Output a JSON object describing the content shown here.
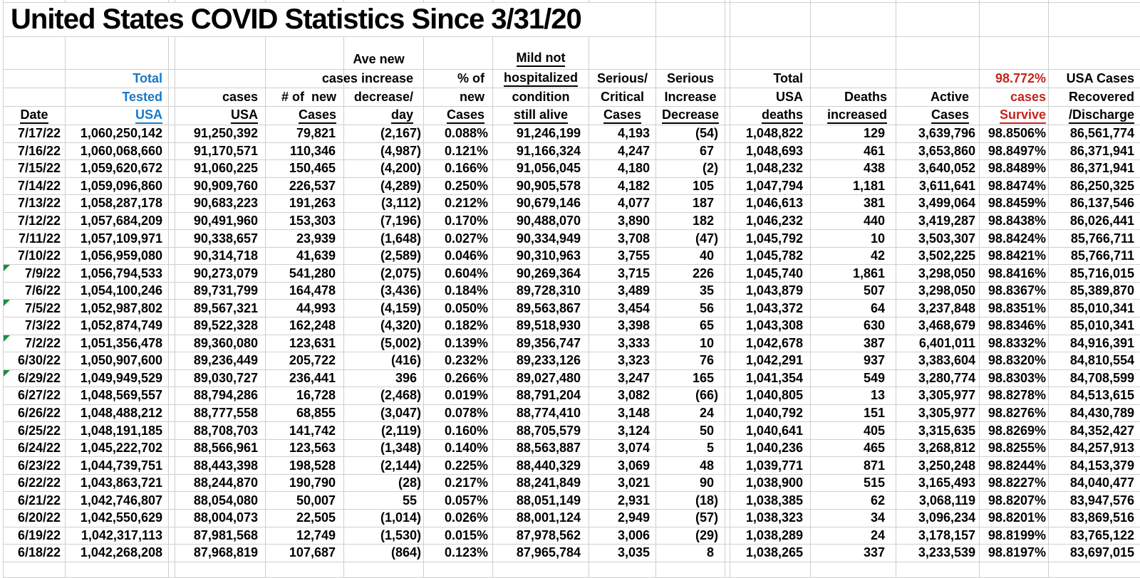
{
  "title": "United States COVID Statistics Since 3/31/20",
  "colors": {
    "blue": "#1878c8",
    "red": "#c7231c",
    "flag_green": "#1e8e3e",
    "gridline": "#cfcfcf"
  },
  "header": {
    "columns": [
      {
        "id": "c1",
        "key": "date",
        "lines": [
          null,
          null,
          null,
          {
            "t": "Date",
            "u": true
          }
        ]
      },
      {
        "id": "c2",
        "key": "total_tested",
        "color": "blue",
        "lines": [
          null,
          {
            "t": "Total"
          },
          {
            "t": "Tested"
          },
          {
            "t": "USA",
            "u": true
          }
        ]
      },
      {
        "id": "c3",
        "key": "spacer1",
        "spacer": true,
        "lines": []
      },
      {
        "id": "c4",
        "key": "cases",
        "lines": [
          null,
          null,
          {
            "t": "cases"
          },
          {
            "t": "USA",
            "u": true
          }
        ]
      },
      {
        "id": "c5",
        "key": "new_cases",
        "lines": [
          null,
          null,
          {
            "t": "# of  new"
          },
          {
            "t": "Cases",
            "u": true
          }
        ]
      },
      {
        "id": "c6",
        "key": "increase_decrease",
        "lines": [
          {
            "t": "Ave new"
          },
          {
            "t": "cases increase"
          },
          {
            "t": "decrease/"
          },
          {
            "t": "day",
            "u": true
          }
        ]
      },
      {
        "id": "c7",
        "key": "pct_new",
        "lines": [
          null,
          {
            "t": "% of"
          },
          {
            "t": "new"
          },
          {
            "t": "Cases",
            "u": true
          }
        ]
      },
      {
        "id": "c8",
        "key": "mild",
        "lines": [
          {
            "t": "Mild not",
            "u": true
          },
          {
            "t": "hospitalized",
            "u": true
          },
          {
            "t": "condition"
          },
          {
            "t": "still alive",
            "u": true
          }
        ]
      },
      {
        "id": "c9",
        "key": "serious",
        "lines": [
          null,
          {
            "t": "Serious/"
          },
          {
            "t": "Critical"
          },
          {
            "t": "Cases",
            "u": true
          }
        ]
      },
      {
        "id": "c10",
        "key": "serious_change",
        "lines": [
          null,
          {
            "t": "Serious"
          },
          {
            "t": "Increase"
          },
          {
            "t": "Decrease",
            "u": true
          }
        ]
      },
      {
        "id": "c11",
        "key": "spacer2",
        "spacer": true,
        "lines": []
      },
      {
        "id": "c12",
        "key": "deaths",
        "lines": [
          null,
          {
            "t": "Total"
          },
          {
            "t": "USA"
          },
          {
            "t": "deaths",
            "u": true
          }
        ]
      },
      {
        "id": "c13",
        "key": "deaths_increase",
        "lines": [
          null,
          null,
          {
            "t": "Deaths"
          },
          {
            "t": "increased",
            "u": true
          }
        ]
      },
      {
        "id": "c14",
        "key": "active",
        "lines": [
          null,
          null,
          {
            "t": "Active"
          },
          {
            "t": "Cases",
            "u": true
          }
        ]
      },
      {
        "id": "c15",
        "key": "survive",
        "color": "red",
        "lines": [
          null,
          {
            "t": "98.772%"
          },
          {
            "t": "cases"
          },
          {
            "t": "Survive",
            "u": true
          }
        ]
      },
      {
        "id": "c16",
        "key": "recovered",
        "lines": [
          null,
          {
            "t": "USA Cases"
          },
          {
            "t": "Recovered"
          },
          {
            "t": "/Discharge",
            "u": true
          }
        ]
      }
    ]
  },
  "flagged_dates": [
    "7/9/22",
    "7/5/22",
    "7/2/22",
    "6/29/22"
  ],
  "rows": [
    [
      "7/17/22",
      "1,060,250,142",
      "91,250,392",
      "79,821",
      "(2,167)",
      "0.088%",
      "91,246,199",
      "4,193",
      "(54)",
      "1,048,822",
      "129",
      "3,639,796",
      "98.8506%",
      "86,561,774"
    ],
    [
      "7/16/22",
      "1,060,068,660",
      "91,170,571",
      "110,346",
      "(4,987)",
      "0.121%",
      "91,166,324",
      "4,247",
      "67",
      "1,048,693",
      "461",
      "3,653,860",
      "98.8497%",
      "86,371,941"
    ],
    [
      "7/15/22",
      "1,059,620,672",
      "91,060,225",
      "150,465",
      "(4,200)",
      "0.166%",
      "91,056,045",
      "4,180",
      "(2)",
      "1,048,232",
      "438",
      "3,640,052",
      "98.8489%",
      "86,371,941"
    ],
    [
      "7/14/22",
      "1,059,096,860",
      "90,909,760",
      "226,537",
      "(4,289)",
      "0.250%",
      "90,905,578",
      "4,182",
      "105",
      "1,047,794",
      "1,181",
      "3,611,641",
      "98.8474%",
      "86,250,325"
    ],
    [
      "7/13/22",
      "1,058,287,178",
      "90,683,223",
      "191,263",
      "(3,112)",
      "0.212%",
      "90,679,146",
      "4,077",
      "187",
      "1,046,613",
      "381",
      "3,499,064",
      "98.8459%",
      "86,137,546"
    ],
    [
      "7/12/22",
      "1,057,684,209",
      "90,491,960",
      "153,303",
      "(7,196)",
      "0.170%",
      "90,488,070",
      "3,890",
      "182",
      "1,046,232",
      "440",
      "3,419,287",
      "98.8438%",
      "86,026,441"
    ],
    [
      "7/11/22",
      "1,057,109,971",
      "90,338,657",
      "23,939",
      "(1,648)",
      "0.027%",
      "90,334,949",
      "3,708",
      "(47)",
      "1,045,792",
      "10",
      "3,503,307",
      "98.8424%",
      "85,766,711"
    ],
    [
      "7/10/22",
      "1,056,959,080",
      "90,314,718",
      "41,639",
      "(2,589)",
      "0.046%",
      "90,310,963",
      "3,755",
      "40",
      "1,045,782",
      "42",
      "3,502,225",
      "98.8421%",
      "85,766,711"
    ],
    [
      "7/9/22",
      "1,056,794,533",
      "90,273,079",
      "541,280",
      "(2,075)",
      "0.604%",
      "90,269,364",
      "3,715",
      "226",
      "1,045,740",
      "1,861",
      "3,298,050",
      "98.8416%",
      "85,716,015"
    ],
    [
      "7/6/22",
      "1,054,100,246",
      "89,731,799",
      "164,478",
      "(3,436)",
      "0.184%",
      "89,728,310",
      "3,489",
      "35",
      "1,043,879",
      "507",
      "3,298,050",
      "98.8367%",
      "85,389,870"
    ],
    [
      "7/5/22",
      "1,052,987,802",
      "89,567,321",
      "44,993",
      "(4,159)",
      "0.050%",
      "89,563,867",
      "3,454",
      "56",
      "1,043,372",
      "64",
      "3,237,848",
      "98.8351%",
      "85,010,341"
    ],
    [
      "7/3/22",
      "1,052,874,749",
      "89,522,328",
      "162,248",
      "(4,320)",
      "0.182%",
      "89,518,930",
      "3,398",
      "65",
      "1,043,308",
      "630",
      "3,468,679",
      "98.8346%",
      "85,010,341"
    ],
    [
      "7/2/22",
      "1,051,356,478",
      "89,360,080",
      "123,631",
      "(5,002)",
      "0.139%",
      "89,356,747",
      "3,333",
      "10",
      "1,042,678",
      "387",
      "6,401,011",
      "98.8332%",
      "84,916,391"
    ],
    [
      "6/30/22",
      "1,050,907,600",
      "89,236,449",
      "205,722",
      "(416)",
      "0.232%",
      "89,233,126",
      "3,323",
      "76",
      "1,042,291",
      "937",
      "3,383,604",
      "98.8320%",
      "84,810,554"
    ],
    [
      "6/29/22",
      "1,049,949,529",
      "89,030,727",
      "236,441",
      "396",
      "0.266%",
      "89,027,480",
      "3,247",
      "165",
      "1,041,354",
      "549",
      "3,280,774",
      "98.8303%",
      "84,708,599"
    ],
    [
      "6/27/22",
      "1,048,569,557",
      "88,794,286",
      "16,728",
      "(2,468)",
      "0.019%",
      "88,791,204",
      "3,082",
      "(66)",
      "1,040,805",
      "13",
      "3,305,977",
      "98.8278%",
      "84,513,615"
    ],
    [
      "6/26/22",
      "1,048,488,212",
      "88,777,558",
      "68,855",
      "(3,047)",
      "0.078%",
      "88,774,410",
      "3,148",
      "24",
      "1,040,792",
      "151",
      "3,305,977",
      "98.8276%",
      "84,430,789"
    ],
    [
      "6/25/22",
      "1,048,191,185",
      "88,708,703",
      "141,742",
      "(2,119)",
      "0.160%",
      "88,705,579",
      "3,124",
      "50",
      "1,040,641",
      "405",
      "3,315,635",
      "98.8269%",
      "84,352,427"
    ],
    [
      "6/24/22",
      "1,045,222,702",
      "88,566,961",
      "123,563",
      "(1,348)",
      "0.140%",
      "88,563,887",
      "3,074",
      "5",
      "1,040,236",
      "465",
      "3,268,812",
      "98.8255%",
      "84,257,913"
    ],
    [
      "6/23/22",
      "1,044,739,751",
      "88,443,398",
      "198,528",
      "(2,144)",
      "0.225%",
      "88,440,329",
      "3,069",
      "48",
      "1,039,771",
      "871",
      "3,250,248",
      "98.8244%",
      "84,153,379"
    ],
    [
      "6/22/22",
      "1,043,863,721",
      "88,244,870",
      "190,790",
      "(28)",
      "0.217%",
      "88,241,849",
      "3,021",
      "90",
      "1,038,900",
      "515",
      "3,165,493",
      "98.8227%",
      "84,040,477"
    ],
    [
      "6/21/22",
      "1,042,746,807",
      "88,054,080",
      "50,007",
      "55",
      "0.057%",
      "88,051,149",
      "2,931",
      "(18)",
      "1,038,385",
      "62",
      "3,068,119",
      "98.8207%",
      "83,947,576"
    ],
    [
      "6/20/22",
      "1,042,550,629",
      "88,004,073",
      "22,505",
      "(1,014)",
      "0.026%",
      "88,001,124",
      "2,949",
      "(57)",
      "1,038,323",
      "34",
      "3,096,234",
      "98.8201%",
      "83,869,516"
    ],
    [
      "6/19/22",
      "1,042,317,113",
      "87,981,568",
      "12,749",
      "(1,530)",
      "0.015%",
      "87,978,562",
      "3,006",
      "(29)",
      "1,038,289",
      "24",
      "3,178,157",
      "98.8199%",
      "83,765,122"
    ],
    [
      "6/18/22",
      "1,042,268,208",
      "87,968,819",
      "107,687",
      "(864)",
      "0.123%",
      "87,965,784",
      "3,035",
      "8",
      "1,038,265",
      "337",
      "3,233,539",
      "98.8197%",
      "83,697,015"
    ]
  ]
}
